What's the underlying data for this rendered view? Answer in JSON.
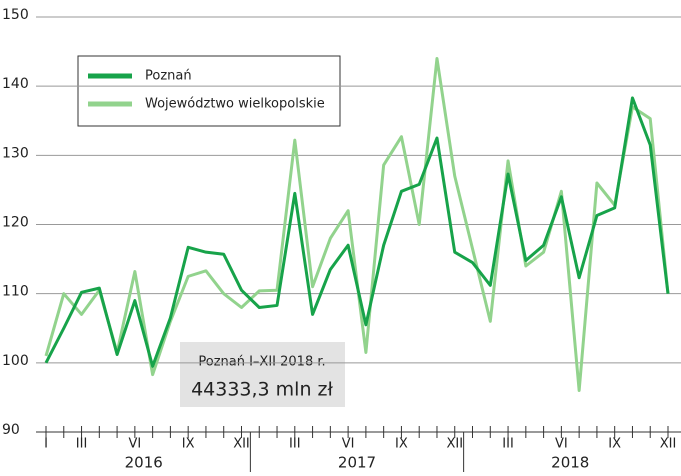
{
  "chart_data": {
    "type": "line",
    "categories": [
      "I",
      null,
      "III",
      null,
      null,
      "VI",
      null,
      null,
      "IX",
      null,
      null,
      "XII",
      null,
      null,
      "III",
      null,
      null,
      "VI",
      null,
      null,
      "IX",
      null,
      null,
      "XII",
      null,
      null,
      "III",
      null,
      null,
      "VI",
      null,
      null,
      "IX",
      null,
      null,
      "XII"
    ],
    "year_labels": [
      "2016",
      "2017",
      "2018"
    ],
    "series": [
      {
        "name": "Poznań",
        "color": "#17a34a",
        "values": [
          100,
          105,
          110.2,
          110.8,
          101.2,
          109,
          99.5,
          106.5,
          116.7,
          116,
          115.7,
          110.5,
          108,
          108.3,
          124.5,
          107,
          113.5,
          117,
          105.5,
          117,
          124.8,
          125.8,
          132.5,
          116,
          114.5,
          111.2,
          127.3,
          114.8,
          117,
          124,
          112.3,
          121.3,
          122.4,
          138.3,
          131.5,
          110
        ]
      },
      {
        "name": "Województwo wielkopolskie",
        "color": "#92d38d",
        "values": [
          101,
          110,
          107,
          110.5,
          101.5,
          113.2,
          98.3,
          106,
          112.5,
          113.3,
          110,
          108,
          110.4,
          110.5,
          132.2,
          111,
          118,
          122,
          101.5,
          128.6,
          132.7,
          120,
          144,
          127,
          116.5,
          106,
          129.2,
          114,
          116,
          124.8,
          96,
          126,
          122.8,
          137,
          135.3,
          110
        ]
      }
    ],
    "ylim": [
      90,
      150
    ],
    "yticks": [
      90,
      100,
      110,
      120,
      130,
      140,
      150
    ],
    "grid": true,
    "annotation": {
      "title": "Poznań I–XII 2018 r.",
      "value": "44333,3 mln zł"
    }
  }
}
